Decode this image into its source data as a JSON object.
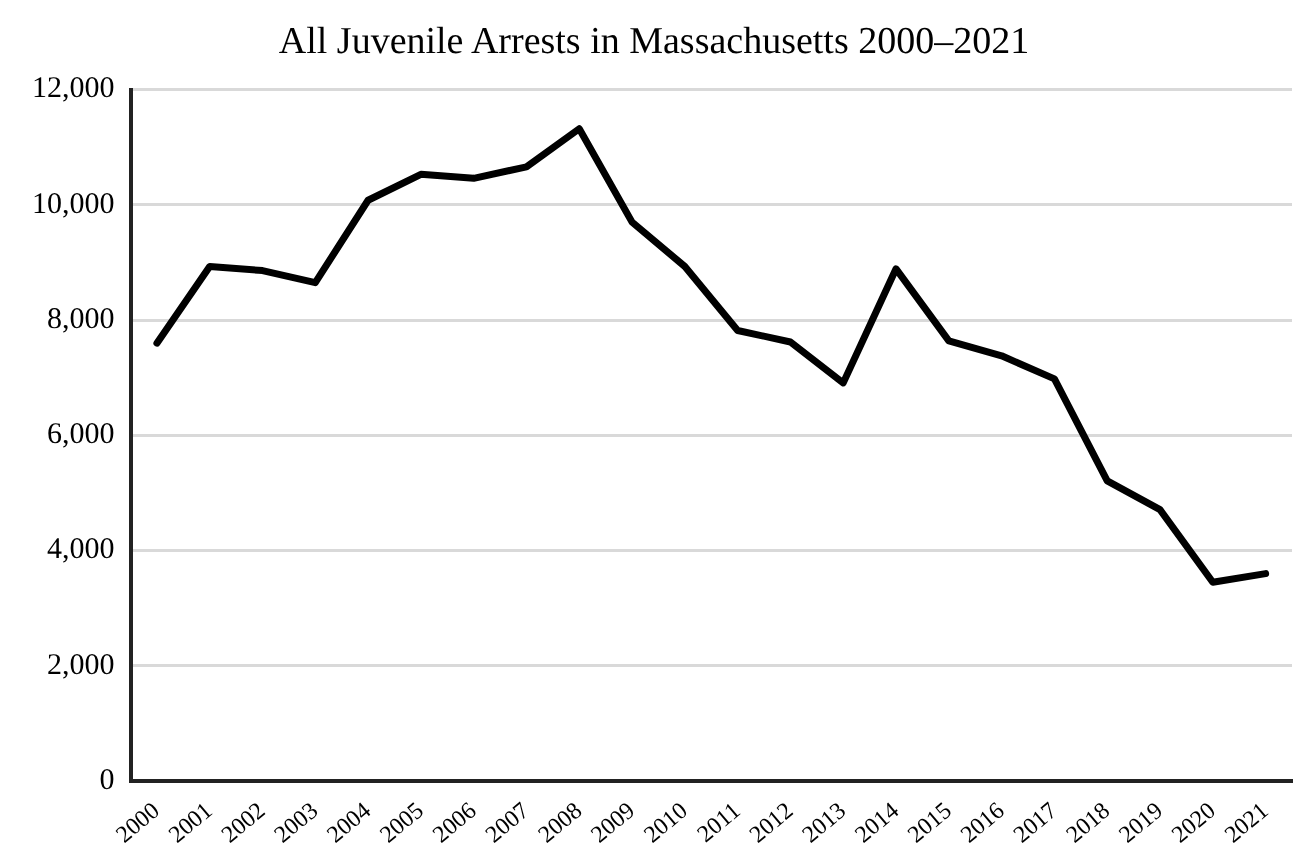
{
  "chart_data": {
    "type": "line",
    "title": "All Juvenile Arrests in Massachusetts 2000–2021",
    "categories": [
      "2000",
      "2001",
      "2002",
      "2003",
      "2004",
      "2005",
      "2006",
      "2007",
      "2008",
      "2009",
      "2010",
      "2011",
      "2012",
      "2013",
      "2014",
      "2015",
      "2016",
      "2017",
      "2018",
      "2019",
      "2020",
      "2021"
    ],
    "series": [
      {
        "color": "#000000",
        "values": [
          7600,
          8930,
          8860,
          8650,
          10080,
          10530,
          10460,
          10660,
          11320,
          9700,
          8930,
          7820,
          7620,
          6910,
          8890,
          7640,
          7380,
          6980,
          5210,
          4710,
          3450,
          3600
        ]
      }
    ],
    "ylim": [
      0,
      12000
    ],
    "yticks": [
      0,
      {
        "value": 2000,
        "label": "2,000"
      },
      {
        "value": 4000,
        "label": "4,000"
      },
      {
        "value": 6000,
        "label": "6,000"
      },
      {
        "value": 8000,
        "label": "8,000"
      },
      {
        "value": 10000,
        "label": "10,000"
      },
      {
        "value": 12000,
        "label": "12,000"
      }
    ],
    "grid": "y",
    "legend": false,
    "marker": "none",
    "line_style": "solid"
  }
}
